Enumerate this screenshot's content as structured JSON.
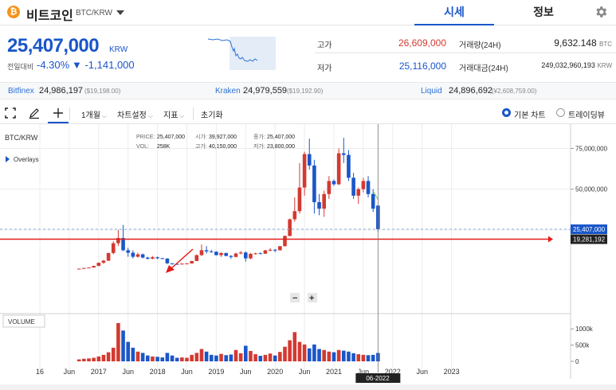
{
  "header": {
    "logo_glyph": "₿",
    "coin_name": "비트코인",
    "pair": "BTC/KRW",
    "tabs": [
      {
        "label": "시세",
        "active": true
      },
      {
        "label": "정보",
        "active": false
      }
    ]
  },
  "price": {
    "current": "25,407,000",
    "unit": "KRW",
    "change_label": "전일대비",
    "change_pct": "-4.30%",
    "change_abs": "▼ -1,141,000"
  },
  "stats": {
    "high_label": "고가",
    "high": "26,609,000",
    "low_label": "저가",
    "low": "25,116,000",
    "volume_label": "거래량(24H)",
    "volume": "9,632.148",
    "volume_unit": "BTC",
    "amount_label": "거래대금(24H)",
    "amount": "249,032,960,193",
    "amount_unit": "KRW"
  },
  "exchanges": [
    {
      "name": "Bitfinex",
      "price": "24,986,197",
      "usd": "($19,198.00)"
    },
    {
      "name": "Kraken",
      "price": "24,979,559",
      "usd": "($19,192.90)"
    },
    {
      "name": "Liquid",
      "price": "24,896,692",
      "usd": "(¥2,608,759.00)"
    }
  ],
  "toolbar": {
    "period": "1개월",
    "chart_settings": "차트설정",
    "indicators": "지표",
    "reset": "초기화",
    "basic_chart": "기본 차트",
    "tradingview": "트레이딩뷰"
  },
  "colors": {
    "up": "#d23a31",
    "down": "#1a56c9",
    "accent": "#1a56c9",
    "bitcoin": "#f7931a",
    "ma_line": "#6cc36a",
    "hline": "#e31b1b"
  },
  "chart_info": {
    "symbol": "BTC/KRW",
    "overlays": "Overlays",
    "price_label": "PRICE:",
    "price": "25,407,000",
    "vol_label": "VOL:",
    "vol": "258K",
    "open_label": "시가:",
    "open": "39,927,000",
    "high_label": "고가:",
    "high": "40,150,000",
    "close_label": "종가:",
    "close": "25,407,000",
    "low_label": "저가:",
    "low": "23,800,000",
    "volume_panel": "VOLUME",
    "current_tag": "25,407,000",
    "hline_tag": "19,281,192",
    "crosshair_date": "06-2022",
    "zoom_minus": "−",
    "zoom_plus": "+"
  },
  "chart_data": {
    "type": "candlestick",
    "symbol": "BTC/KRW",
    "interval": "1 month",
    "y_axis": {
      "ticks": [
        25000000,
        50000000,
        75000000
      ],
      "labels": [
        "25,000,000",
        "50,000,000",
        "75,000,000"
      ],
      "range": [
        0,
        85000000
      ]
    },
    "volume_axis": {
      "ticks": [
        0,
        500000,
        1000000
      ],
      "labels": [
        "0",
        "500k",
        "1000k"
      ],
      "range": [
        0,
        1300000
      ]
    },
    "x_axis_labels": [
      "16",
      "Jun",
      "2017",
      "Jun",
      "2018",
      "Jun",
      "2019",
      "Jun",
      "2020",
      "Jun",
      "2021",
      "Jun",
      "2022",
      "Jun",
      "2023"
    ],
    "horizontal_line": 19281192,
    "candles": [
      {
        "m": 8,
        "o": 1000000,
        "h": 1300000,
        "l": 900000,
        "c": 1200000,
        "v": 60000
      },
      {
        "m": 9,
        "o": 1200000,
        "h": 1700000,
        "l": 1100000,
        "c": 1600000,
        "v": 80000
      },
      {
        "m": 10,
        "o": 1600000,
        "h": 2000000,
        "l": 1500000,
        "c": 1900000,
        "v": 90000
      },
      {
        "m": 11,
        "o": 1900000,
        "h": 3000000,
        "l": 1800000,
        "c": 2900000,
        "v": 110000
      },
      {
        "m": 12,
        "o": 2900000,
        "h": 5000000,
        "l": 2700000,
        "c": 4800000,
        "v": 150000
      },
      {
        "m": 13,
        "o": 4800000,
        "h": 6500000,
        "l": 4200000,
        "c": 6100000,
        "v": 200000
      },
      {
        "m": 14,
        "o": 6100000,
        "h": 11000000,
        "l": 5900000,
        "c": 10800000,
        "v": 280000
      },
      {
        "m": 15,
        "o": 10800000,
        "h": 18000000,
        "l": 10000000,
        "c": 16800000,
        "v": 420000
      },
      {
        "m": 16,
        "o": 16800000,
        "h": 25000000,
        "l": 15000000,
        "c": 20000000,
        "v": 1180000
      },
      {
        "m": 17,
        "o": 20000000,
        "h": 28000000,
        "l": 12000000,
        "c": 12500000,
        "v": 950000
      },
      {
        "m": 18,
        "o": 12500000,
        "h": 14000000,
        "l": 8500000,
        "c": 11000000,
        "v": 600000
      },
      {
        "m": 19,
        "o": 11000000,
        "h": 12500000,
        "l": 7500000,
        "c": 8500000,
        "v": 420000
      },
      {
        "m": 20,
        "o": 8500000,
        "h": 11000000,
        "l": 8000000,
        "c": 10000000,
        "v": 300000
      },
      {
        "m": 21,
        "o": 10000000,
        "h": 10500000,
        "l": 7500000,
        "c": 8000000,
        "v": 260000
      },
      {
        "m": 22,
        "o": 8000000,
        "h": 8500000,
        "l": 6800000,
        "c": 7300000,
        "v": 180000
      },
      {
        "m": 23,
        "o": 7300000,
        "h": 9000000,
        "l": 7000000,
        "c": 8200000,
        "v": 150000
      },
      {
        "m": 24,
        "o": 8200000,
        "h": 8600000,
        "l": 7000000,
        "c": 7600000,
        "v": 140000
      },
      {
        "m": 25,
        "o": 7600000,
        "h": 7800000,
        "l": 7100000,
        "c": 7400000,
        "v": 120000
      },
      {
        "m": 26,
        "o": 7400000,
        "h": 7600000,
        "l": 4000000,
        "c": 4500000,
        "v": 260000
      },
      {
        "m": 27,
        "o": 4500000,
        "h": 4600000,
        "l": 3600000,
        "c": 4100000,
        "v": 180000
      },
      {
        "m": 28,
        "o": 4100000,
        "h": 4300000,
        "l": 3800000,
        "c": 3900000,
        "v": 110000
      },
      {
        "m": 29,
        "o": 3900000,
        "h": 4500000,
        "l": 3700000,
        "c": 4300000,
        "v": 120000
      },
      {
        "m": 30,
        "o": 4300000,
        "h": 4500000,
        "l": 4100000,
        "c": 4400000,
        "v": 110000
      },
      {
        "m": 31,
        "o": 4400000,
        "h": 6000000,
        "l": 4300000,
        "c": 5900000,
        "v": 200000
      },
      {
        "m": 32,
        "o": 5900000,
        "h": 10000000,
        "l": 5800000,
        "c": 9500000,
        "v": 260000
      },
      {
        "m": 33,
        "o": 9500000,
        "h": 16000000,
        "l": 9000000,
        "c": 12500000,
        "v": 380000
      },
      {
        "m": 34,
        "o": 12500000,
        "h": 15000000,
        "l": 10500000,
        "c": 11800000,
        "v": 300000
      },
      {
        "m": 35,
        "o": 11800000,
        "h": 12800000,
        "l": 11000000,
        "c": 11600000,
        "v": 200000
      },
      {
        "m": 36,
        "o": 11600000,
        "h": 11800000,
        "l": 9300000,
        "c": 9500000,
        "v": 180000
      },
      {
        "m": 37,
        "o": 9500000,
        "h": 11200000,
        "l": 8400000,
        "c": 10800000,
        "v": 230000
      },
      {
        "m": 38,
        "o": 10800000,
        "h": 11000000,
        "l": 8800000,
        "c": 9000000,
        "v": 190000
      },
      {
        "m": 39,
        "o": 9000000,
        "h": 9500000,
        "l": 7200000,
        "c": 8400000,
        "v": 210000
      },
      {
        "m": 40,
        "o": 8400000,
        "h": 10900000,
        "l": 8200000,
        "c": 10500000,
        "v": 350000
      },
      {
        "m": 41,
        "o": 10500000,
        "h": 12000000,
        "l": 10000000,
        "c": 11100000,
        "v": 250000
      },
      {
        "m": 42,
        "o": 11100000,
        "h": 11800000,
        "l": 5500000,
        "c": 7500000,
        "v": 480000
      },
      {
        "m": 43,
        "o": 7500000,
        "h": 10800000,
        "l": 7000000,
        "c": 10300000,
        "v": 320000
      },
      {
        "m": 44,
        "o": 10300000,
        "h": 11000000,
        "l": 9800000,
        "c": 10600000,
        "v": 220000
      },
      {
        "m": 45,
        "o": 10600000,
        "h": 11200000,
        "l": 10300000,
        "c": 10400000,
        "v": 170000
      },
      {
        "m": 46,
        "o": 10400000,
        "h": 12800000,
        "l": 10200000,
        "c": 12400000,
        "v": 200000
      },
      {
        "m": 47,
        "o": 12400000,
        "h": 13800000,
        "l": 11800000,
        "c": 12800000,
        "v": 240000
      },
      {
        "m": 48,
        "o": 12800000,
        "h": 13300000,
        "l": 11300000,
        "c": 12500000,
        "v": 180000
      },
      {
        "m": 49,
        "o": 12500000,
        "h": 15000000,
        "l": 12300000,
        "c": 15000000,
        "v": 290000
      },
      {
        "m": 50,
        "o": 15000000,
        "h": 21500000,
        "l": 14800000,
        "c": 21300000,
        "v": 450000
      },
      {
        "m": 51,
        "o": 21300000,
        "h": 32000000,
        "l": 21000000,
        "c": 31500000,
        "v": 650000
      },
      {
        "m": 52,
        "o": 31500000,
        "h": 45000000,
        "l": 30000000,
        "c": 36500000,
        "v": 900000
      },
      {
        "m": 53,
        "o": 36500000,
        "h": 66000000,
        "l": 35000000,
        "c": 51000000,
        "v": 600000
      },
      {
        "m": 54,
        "o": 51000000,
        "h": 73000000,
        "l": 46000000,
        "c": 71500000,
        "v": 520000
      },
      {
        "m": 55,
        "o": 71500000,
        "h": 81000000,
        "l": 62000000,
        "c": 64500000,
        "v": 400000
      },
      {
        "m": 56,
        "o": 64500000,
        "h": 68000000,
        "l": 35000000,
        "c": 42000000,
        "v": 520000
      },
      {
        "m": 57,
        "o": 42000000,
        "h": 47000000,
        "l": 34000000,
        "c": 38000000,
        "v": 380000
      },
      {
        "m": 58,
        "o": 38000000,
        "h": 49000000,
        "l": 33000000,
        "c": 47000000,
        "v": 350000
      },
      {
        "m": 59,
        "o": 47000000,
        "h": 58000000,
        "l": 44000000,
        "c": 55000000,
        "v": 300000
      },
      {
        "m": 60,
        "o": 55000000,
        "h": 56000000,
        "l": 52000000,
        "c": 53000000,
        "v": 280000
      },
      {
        "m": 61,
        "o": 53000000,
        "h": 75000000,
        "l": 52500000,
        "c": 72000000,
        "v": 350000
      },
      {
        "m": 62,
        "o": 72000000,
        "h": 81500000,
        "l": 66000000,
        "c": 71000000,
        "v": 330000
      },
      {
        "m": 63,
        "o": 71000000,
        "h": 74000000,
        "l": 55000000,
        "c": 57000000,
        "v": 300000
      },
      {
        "m": 64,
        "o": 57000000,
        "h": 60000000,
        "l": 44000000,
        "c": 46000000,
        "v": 250000
      },
      {
        "m": 65,
        "o": 46000000,
        "h": 51000000,
        "l": 41000000,
        "c": 50000000,
        "v": 220000
      },
      {
        "m": 66,
        "o": 50000000,
        "h": 57000000,
        "l": 48000000,
        "c": 55000000,
        "v": 200000
      },
      {
        "m": 67,
        "o": 55000000,
        "h": 58000000,
        "l": 45000000,
        "c": 47000000,
        "v": 190000
      },
      {
        "m": 68,
        "o": 47000000,
        "h": 50000000,
        "l": 36000000,
        "c": 38000000,
        "v": 200000
      },
      {
        "m": 69,
        "o": 39927000,
        "h": 40150000,
        "l": 23800000,
        "c": 25407000,
        "v": 258000
      }
    ]
  }
}
